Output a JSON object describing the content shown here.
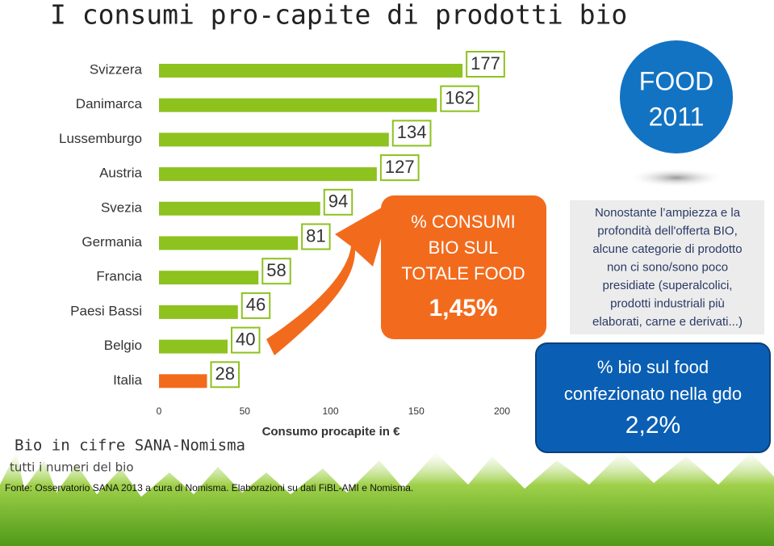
{
  "chart_data": {
    "type": "bar",
    "orientation": "horizontal",
    "title": "I consumi pro-capite di prodotti bio",
    "categories": [
      "Svizzera",
      "Danimarca",
      "Lussemburgo",
      "Austria",
      "Svezia",
      "Germania",
      "Francia",
      "Paesi Bassi",
      "Belgio",
      "Italia"
    ],
    "values": [
      177,
      162,
      134,
      127,
      94,
      81,
      58,
      46,
      40,
      28
    ],
    "colors": [
      "#8dc21f",
      "#8dc21f",
      "#8dc21f",
      "#8dc21f",
      "#8dc21f",
      "#8dc21f",
      "#8dc21f",
      "#8dc21f",
      "#8dc21f",
      "#f26b1d"
    ],
    "xlim": [
      0,
      200
    ],
    "xticks": [
      0,
      50,
      100,
      150,
      200
    ],
    "x_label": "Consumo procapite in €"
  },
  "branding": {
    "title": "Bio in cifre SANA-Nomisma",
    "subtitle": "tutti i numeri del bio"
  },
  "source": "Fonte: Osservatorio SANA 2013 a cura di Nomisma. Elaborazioni su dati FiBL-AMI e Nomisma.",
  "badge": {
    "lines": [
      "FOOD",
      "2011"
    ]
  },
  "orange_box": {
    "lines": [
      "% CONSUMI",
      "BIO SUL",
      "TOTALE FOOD"
    ],
    "value": "1,45%"
  },
  "note": {
    "lines": [
      "Nonostante l’ampiezza e la",
      "profondità dell'offerta BIO,",
      "alcune categorie di prodotto",
      "non ci sono/sono poco",
      "presidiate  (superalcolici,",
      "prodotti industriali più",
      "elaborati, carne e derivati...)"
    ]
  },
  "blue_box": {
    "lines": [
      "% bio sul food",
      "confezionato nella gdo"
    ],
    "value": "2,2%"
  }
}
